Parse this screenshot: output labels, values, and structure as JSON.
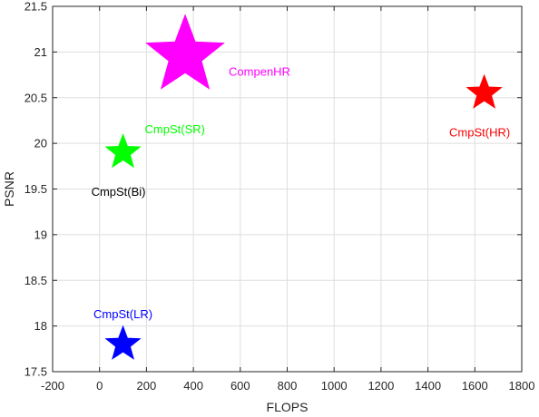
{
  "chart_data": {
    "type": "scatter",
    "title": "",
    "xlabel": "FLOPS",
    "ylabel": "PSNR",
    "xlim": [
      -200,
      1800
    ],
    "ylim": [
      17.5,
      21.5
    ],
    "xticks": [
      -200,
      0,
      200,
      400,
      600,
      800,
      1000,
      1200,
      1400,
      1600,
      1800
    ],
    "yticks": [
      17.5,
      18,
      18.5,
      19,
      19.5,
      20,
      20.5,
      21,
      21.5
    ],
    "xtick_labels": [
      "-200",
      "0",
      "200",
      "400",
      "600",
      "800",
      "1000",
      "1200",
      "1400",
      "1600",
      "1800"
    ],
    "ytick_labels": [
      "17.5",
      "18",
      "18.5",
      "19",
      "19.5",
      "20",
      "20.5",
      "21",
      "21.5"
    ],
    "grid": true,
    "marker": "star",
    "points": [
      {
        "label": "CompenHR",
        "x": 365,
        "y": 20.96,
        "color": "#ff00ff",
        "marker_size": "large",
        "label_position": "right-below"
      },
      {
        "label": "CmpSt(HR)",
        "x": 1640,
        "y": 20.55,
        "color": "#ff0000",
        "marker_size": "medium",
        "label_position": "below"
      },
      {
        "label": "CmpSt(SR)",
        "x": 100,
        "y": 19.9,
        "color": "#00ff00",
        "marker_size": "medium",
        "label_position": "upper-right"
      },
      {
        "label": "CmpSt(Bi)",
        "x": 100,
        "y": 19.9,
        "color": "#000000",
        "marker_size": "none",
        "label_position": "below",
        "label_color": "#000000"
      },
      {
        "label": "CmpSt(LR)",
        "x": 100,
        "y": 17.8,
        "color": "#0000ff",
        "marker_size": "medium",
        "label_position": "above"
      }
    ]
  }
}
